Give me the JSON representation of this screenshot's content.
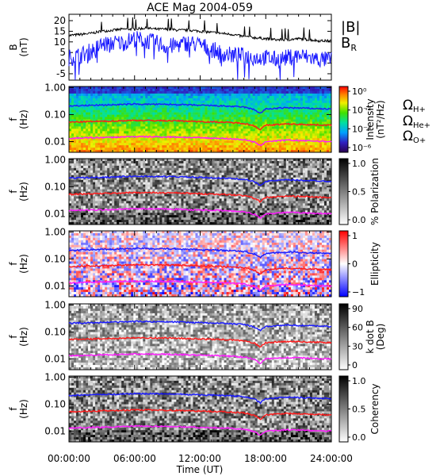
{
  "title": "ACE Mag 2004-059",
  "colors": {
    "b_total": "#000000",
    "b_r": "#1a1aff",
    "h_plus": "#1a1aff",
    "he_plus": "#ff1a1a",
    "o_plus": "#ff1aff"
  },
  "chart_data": [
    {
      "type": "line",
      "panel": "magnetic-field",
      "ylabel": "B\n(nT)",
      "ylim": [
        -8,
        23
      ],
      "yticks": [
        "20",
        "15",
        "10",
        "5",
        "0",
        "-5"
      ],
      "series": [
        {
          "name": "|B|",
          "color": "#000000",
          "x_hours": [
            0,
            1,
            2,
            3,
            4,
            5,
            6,
            7,
            8,
            9,
            10,
            11,
            12,
            13,
            14,
            15,
            16,
            17,
            18,
            19,
            20,
            21,
            22,
            23,
            24
          ],
          "values": [
            13,
            13.5,
            14,
            15,
            15.5,
            16,
            16,
            16.5,
            16,
            16,
            15.5,
            15.5,
            15,
            14.5,
            14,
            13.5,
            12.5,
            12,
            11.5,
            11,
            11,
            11.5,
            11,
            10.5,
            10.5
          ]
        },
        {
          "name": "BR",
          "label_main": "B",
          "label_sub": "R",
          "color": "#1a1aff",
          "x_hours": [
            0,
            1,
            2,
            3,
            4,
            5,
            6,
            7,
            8,
            9,
            10,
            11,
            12,
            13,
            14,
            15,
            16,
            17,
            18,
            19,
            20,
            21,
            22,
            23,
            24
          ],
          "values": [
            3,
            4,
            6,
            9,
            10,
            10,
            12,
            11,
            10,
            8,
            9,
            10,
            9,
            7,
            5,
            4,
            4,
            3,
            3,
            2,
            3,
            4,
            3,
            2,
            2
          ]
        }
      ]
    },
    {
      "type": "heatmap",
      "panel": "intensity",
      "ylabel": "f\n(Hz)",
      "yticks": [
        "1.00",
        "0.10",
        "0.01"
      ],
      "colorbar": {
        "label": "Intensity\n(nT²/Hz)",
        "ticks": [
          "10⁰",
          "10⁻²",
          "10⁻⁴",
          "10⁻⁶"
        ],
        "scale": "rainbow"
      }
    },
    {
      "type": "heatmap",
      "panel": "polarization",
      "ylabel": "f\n(Hz)",
      "yticks": [
        "1.00",
        "0.10",
        "0.01"
      ],
      "colorbar": {
        "label": "% Polarization",
        "ticks": [
          "1.0",
          "0.5",
          "0.0"
        ],
        "scale": "gray"
      }
    },
    {
      "type": "heatmap",
      "panel": "ellipticity",
      "ylabel": "f\n(Hz)",
      "yticks": [
        "1.00",
        "0.10",
        "0.01"
      ],
      "colorbar": {
        "label": "Ellipticity",
        "ticks": [
          "1",
          "0",
          "−1"
        ],
        "scale": "bluered"
      }
    },
    {
      "type": "heatmap",
      "panel": "k-dot-b",
      "ylabel": "f\n(Hz)",
      "yticks": [
        "1.00",
        "0.10",
        "0.01"
      ],
      "colorbar": {
        "label": "k dot B\n(Deg)",
        "ticks": [
          "90",
          "60",
          "30",
          "0"
        ],
        "scale": "gray"
      }
    },
    {
      "type": "heatmap",
      "panel": "coherency",
      "ylabel": "f\n(Hz)",
      "yticks": [
        "1.00",
        "0.10",
        "0.01"
      ],
      "colorbar": {
        "label": "Coherency",
        "ticks": [
          "1.0",
          "0.5",
          "0.0"
        ],
        "scale": "gray"
      }
    }
  ],
  "gyrofrequency": {
    "x_hours": [
      0,
      2,
      4,
      6,
      8,
      10,
      12,
      14,
      16,
      17,
      17.5,
      18,
      20,
      22,
      24
    ],
    "h_plus_hz": [
      0.21,
      0.22,
      0.23,
      0.245,
      0.24,
      0.235,
      0.22,
      0.21,
      0.19,
      0.15,
      0.11,
      0.16,
      0.18,
      0.17,
      0.16
    ],
    "labels": [
      {
        "main": "Ω",
        "sub": "H+",
        "color": "#1a1aff"
      },
      {
        "main": "Ω",
        "sub": "He+",
        "color": "#ff1a1a"
      },
      {
        "main": "Ω",
        "sub": "O+",
        "color": "#ff1aff"
      }
    ]
  },
  "xaxis": {
    "label": "Time (UT)",
    "ticks": [
      "00:00:00",
      "06:00:00",
      "12:00:00",
      "18:00:00",
      "24:00:00"
    ],
    "range_hours": [
      0,
      24
    ]
  },
  "b_legend": {
    "total": "|B|",
    "radial_main": "B",
    "radial_sub": "R"
  }
}
